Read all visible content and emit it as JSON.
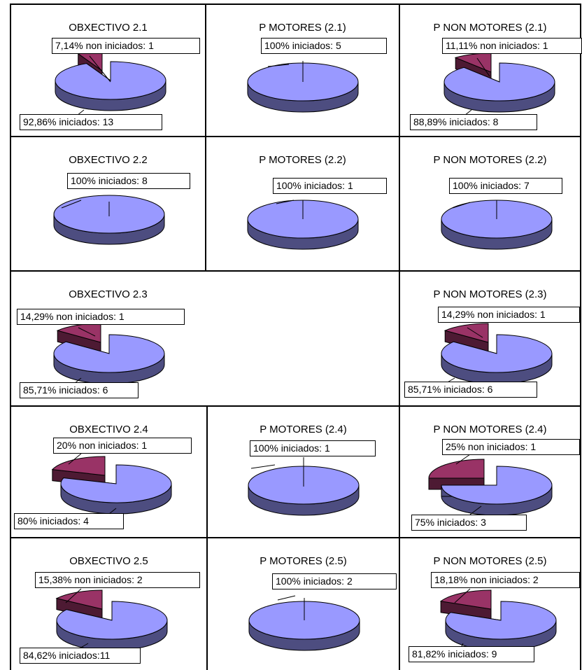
{
  "colors": {
    "iniciados": "#9999ff",
    "iniciados_side": "#4d4d80",
    "non_iniciados": "#993366",
    "non_iniciados_side": "#4d1a33",
    "outline": "#000000"
  },
  "chart_data": [
    {
      "type": "pie",
      "title": "OBXECTIVO 2.1",
      "slices": [
        {
          "label": "iniciados",
          "percent": "92,86%",
          "count": 13,
          "text": "92,86% iniciados: 13"
        },
        {
          "label": "non iniciados",
          "percent": "7,14%",
          "count": 1,
          "text": "7,14% non iniciados: 1"
        }
      ]
    },
    {
      "type": "pie",
      "title": "P MOTORES (2.1)",
      "slices": [
        {
          "label": "iniciados",
          "percent": "100%",
          "count": 5,
          "text": "100% iniciados: 5"
        }
      ]
    },
    {
      "type": "pie",
      "title": "P NON MOTORES (2.1)",
      "slices": [
        {
          "label": "iniciados",
          "percent": "88,89%",
          "count": 8,
          "text": "88,89% iniciados: 8"
        },
        {
          "label": "non iniciados",
          "percent": "11,11%",
          "count": 1,
          "text": "11,11% non iniciados: 1"
        }
      ]
    },
    {
      "type": "pie",
      "title": "OBXECTIVO 2.2",
      "slices": [
        {
          "label": "iniciados",
          "percent": "100%",
          "count": 8,
          "text": "100% iniciados: 8"
        }
      ]
    },
    {
      "type": "pie",
      "title": "P MOTORES (2.2)",
      "slices": [
        {
          "label": "iniciados",
          "percent": "100%",
          "count": 1,
          "text": "100% iniciados: 1"
        }
      ]
    },
    {
      "type": "pie",
      "title": "P NON MOTORES (2.2)",
      "slices": [
        {
          "label": "iniciados",
          "percent": "100%",
          "count": 7,
          "text": "100% iniciados: 7"
        }
      ]
    },
    {
      "type": "pie",
      "title": "OBXECTIVO 2.3",
      "slices": [
        {
          "label": "iniciados",
          "percent": "85,71%",
          "count": 6,
          "text": "85,71% iniciados: 6"
        },
        {
          "label": "non iniciados",
          "percent": "14,29%",
          "count": 1,
          "text": "14,29% non iniciados: 1"
        }
      ]
    },
    {
      "type": "pie",
      "title": "P NON MOTORES (2.3)",
      "slices": [
        {
          "label": "iniciados",
          "percent": "85,71%",
          "count": 6,
          "text": "85,71% iniciados: 6"
        },
        {
          "label": "non iniciados",
          "percent": "14,29%",
          "count": 1,
          "text": "14,29% non iniciados: 1"
        }
      ]
    },
    {
      "type": "pie",
      "title": "OBXECTIVO 2.4",
      "slices": [
        {
          "label": "iniciados",
          "percent": "80%",
          "count": 4,
          "text": "80% iniciados: 4"
        },
        {
          "label": "non iniciados",
          "percent": "20%",
          "count": 1,
          "text": "20% non iniciados: 1"
        }
      ]
    },
    {
      "type": "pie",
      "title": "P MOTORES (2.4)",
      "slices": [
        {
          "label": "iniciados",
          "percent": "100%",
          "count": 1,
          "text": "100% iniciados: 1"
        }
      ]
    },
    {
      "type": "pie",
      "title": "P NON MOTORES (2.4)",
      "slices": [
        {
          "label": "iniciados",
          "percent": "75%",
          "count": 3,
          "text": "75% iniciados: 3"
        },
        {
          "label": "non iniciados",
          "percent": "25%",
          "count": 1,
          "text": "25% non iniciados: 1"
        }
      ]
    },
    {
      "type": "pie",
      "title": "OBXECTIVO 2.5",
      "slices": [
        {
          "label": "iniciados",
          "percent": "84,62%",
          "count": 11,
          "text": "84,62% iniciados:11"
        },
        {
          "label": "non iniciados",
          "percent": "15,38%",
          "count": 2,
          "text": "15,38% non iniciados: 2"
        }
      ]
    },
    {
      "type": "pie",
      "title": "P MOTORES (2.5)",
      "slices": [
        {
          "label": "iniciados",
          "percent": "100%",
          "count": 2,
          "text": "100% iniciados: 2"
        }
      ]
    },
    {
      "type": "pie",
      "title": "P NON MOTORES (2.5)",
      "slices": [
        {
          "label": "iniciados",
          "percent": "81,82%",
          "count": 9,
          "text": "81,82% iniciados: 9"
        },
        {
          "label": "non iniciados",
          "percent": "18,18%",
          "count": 2,
          "text": "18,18% non iniciados: 2"
        }
      ]
    }
  ]
}
